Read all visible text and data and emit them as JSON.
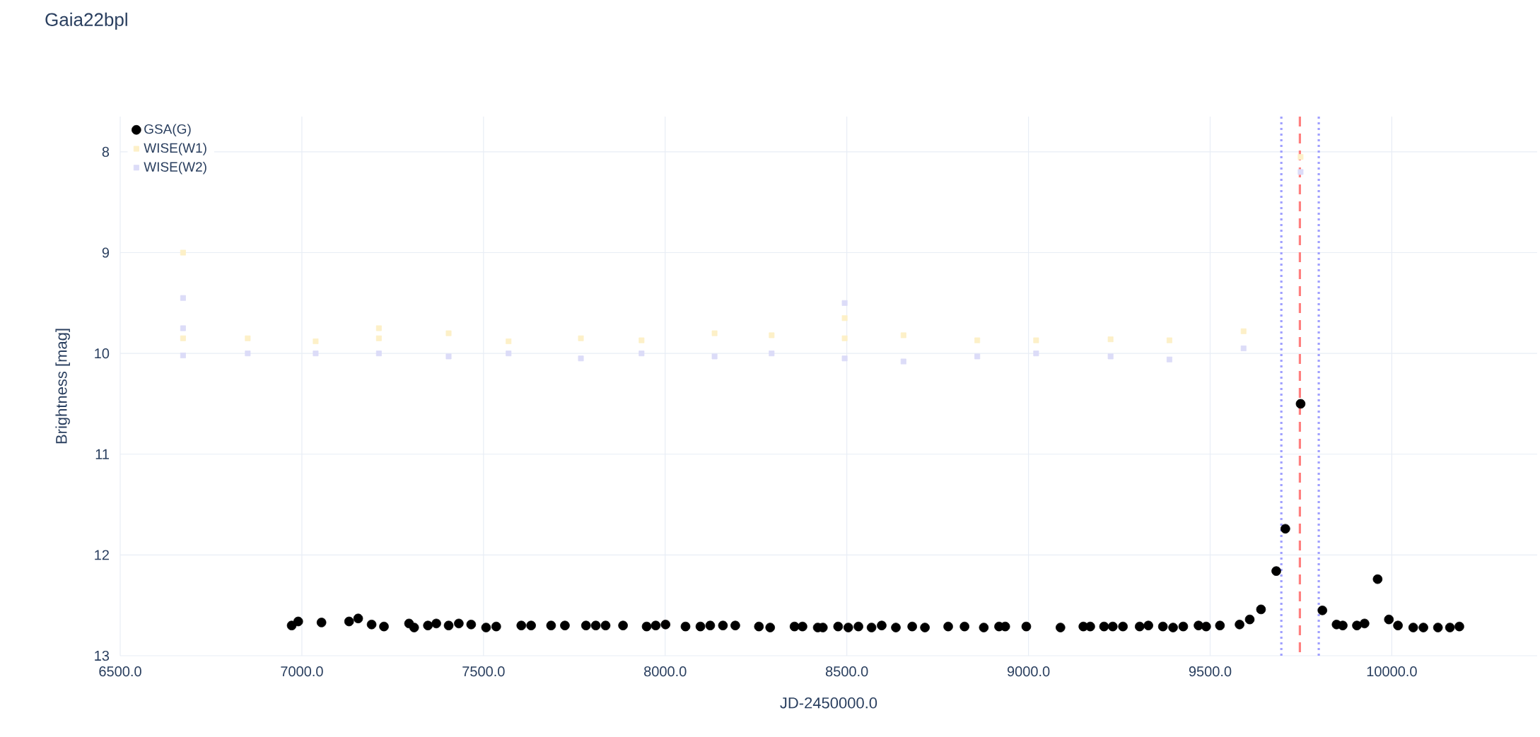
{
  "chart_data": {
    "type": "scatter",
    "title": "Gaia22bpl",
    "xlabel": "JD-2450000.0",
    "ylabel": "Brightness [mag]",
    "xlim": [
      6500,
      10400
    ],
    "ylim": [
      13,
      7.65
    ],
    "xticks": [
      {
        "value": 6500,
        "label": "6500.0"
      },
      {
        "value": 7000,
        "label": "7000.0"
      },
      {
        "value": 7500,
        "label": "7500.0"
      },
      {
        "value": 8000,
        "label": "8000.0"
      },
      {
        "value": 8500,
        "label": "8500.0"
      },
      {
        "value": 9000,
        "label": "9000.0"
      },
      {
        "value": 9500,
        "label": "9500.0"
      },
      {
        "value": 10000,
        "label": "10000.0"
      }
    ],
    "yticks": [
      8,
      9,
      10,
      11,
      12,
      13
    ],
    "grid": true,
    "legend": "top left",
    "marker": "circle",
    "ref_lines": [
      {
        "axis": "x",
        "value": 9747,
        "color": "#ff8080",
        "line_style": "dashed"
      },
      {
        "axis": "x",
        "value": 9696,
        "color": "#a0a0ff",
        "line_style": "dotted"
      },
      {
        "axis": "x",
        "value": 9799,
        "color": "#a0a0ff",
        "line_style": "dotted"
      }
    ],
    "series": [
      {
        "name": "GSA(G)",
        "color": "#000000",
        "x": [
          6972,
          6990,
          7054,
          7130,
          7155,
          7192,
          7226,
          7295,
          7309,
          7347,
          7370,
          7404,
          7432,
          7466,
          7507,
          7535,
          7604,
          7631,
          7686,
          7724,
          7782,
          7809,
          7836,
          7884,
          7949,
          7974,
          8001,
          8056,
          8097,
          8124,
          8159,
          8193,
          8258,
          8289,
          8356,
          8378,
          8420,
          8434,
          8476,
          8504,
          8532,
          8568,
          8596,
          8635,
          8680,
          8715,
          8779,
          8824,
          8877,
          8919,
          8936,
          8994,
          9088,
          9151,
          9170,
          9208,
          9232,
          9260,
          9306,
          9330,
          9370,
          9398,
          9426,
          9468,
          9489,
          9527,
          9581,
          9609,
          9640,
          9682,
          9707,
          9749,
          9809,
          9848,
          9865,
          9904,
          9925,
          9961,
          9992,
          10017,
          10059,
          10087,
          10127,
          10160,
          10186
        ],
        "values": [
          12.7,
          12.66,
          12.67,
          12.66,
          12.63,
          12.69,
          12.71,
          12.68,
          12.72,
          12.7,
          12.68,
          12.7,
          12.68,
          12.69,
          12.72,
          12.71,
          12.7,
          12.7,
          12.7,
          12.7,
          12.7,
          12.7,
          12.7,
          12.7,
          12.71,
          12.7,
          12.69,
          12.71,
          12.71,
          12.7,
          12.7,
          12.7,
          12.71,
          12.72,
          12.71,
          12.71,
          12.72,
          12.72,
          12.71,
          12.72,
          12.71,
          12.72,
          12.7,
          12.72,
          12.71,
          12.72,
          12.71,
          12.71,
          12.72,
          12.71,
          12.71,
          12.71,
          12.72,
          12.71,
          12.71,
          12.71,
          12.71,
          12.71,
          12.71,
          12.7,
          12.71,
          12.72,
          12.71,
          12.7,
          12.71,
          12.7,
          12.69,
          12.64,
          12.54,
          12.16,
          11.74,
          10.5,
          12.55,
          12.69,
          12.7,
          12.7,
          12.68,
          12.24,
          12.64,
          12.7,
          12.72,
          12.72,
          12.72,
          12.72,
          12.71
        ]
      },
      {
        "name": "WISE(W1)",
        "color": "#fdf0c8",
        "marker": "square",
        "x": [
          6673,
          6673,
          6851,
          7038,
          7212,
          7212,
          7404,
          7569,
          7768,
          7935,
          8136,
          8293,
          8494,
          8494,
          8656,
          8859,
          9021,
          9226,
          9388,
          9592,
          9749
        ],
        "values": [
          9.0,
          9.85,
          9.85,
          9.88,
          9.75,
          9.85,
          9.8,
          9.88,
          9.85,
          9.87,
          9.8,
          9.82,
          9.65,
          9.85,
          9.82,
          9.87,
          9.87,
          9.86,
          9.87,
          9.78,
          8.05
        ]
      },
      {
        "name": "WISE(W2)",
        "color": "#dcdcf8",
        "marker": "square",
        "x": [
          6673,
          6673,
          6673,
          6851,
          7038,
          7212,
          7404,
          7569,
          7768,
          7935,
          8136,
          8293,
          8494,
          8494,
          8656,
          8859,
          9021,
          9226,
          9388,
          9592,
          9749
        ],
        "values": [
          9.45,
          9.75,
          10.02,
          10.0,
          10.0,
          10.0,
          10.03,
          10.0,
          10.05,
          10.0,
          10.03,
          10.0,
          9.5,
          10.05,
          10.08,
          10.03,
          10.0,
          10.03,
          10.06,
          9.95,
          8.2
        ]
      }
    ]
  }
}
